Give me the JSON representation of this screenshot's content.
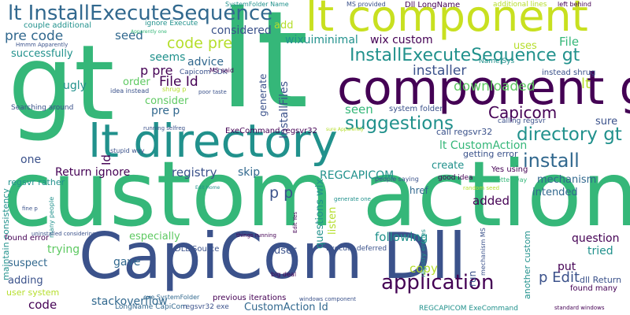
{
  "palette": {
    "dark_purple": "#440154",
    "dark_blue": "#3b528b",
    "teal_blue": "#31688e",
    "teal": "#21918c",
    "green": "#35b779",
    "light_green": "#5ec962",
    "yellow_green": "#b5de2b",
    "yellow": "#c8e020"
  },
  "words": [
    {
      "text": "custom action",
      "color": "#35b779",
      "orientation": "horizontal"
    },
    {
      "text": "gt",
      "color": "#35b779",
      "orientation": "horizontal"
    },
    {
      "text": "lt",
      "color": "#35b779",
      "orientation": "horizontal"
    },
    {
      "text": "CapiCom Dll",
      "color": "#3b528b",
      "orientation": "horizontal"
    },
    {
      "text": "lt component",
      "color": "#c8e020",
      "orientation": "horizontal"
    },
    {
      "text": "component gt",
      "color": "#440154",
      "orientation": "horizontal"
    },
    {
      "text": "lt directory",
      "color": "#21918c",
      "orientation": "horizontal"
    },
    {
      "text": "lt InstallExecuteSequence",
      "color": "#31688e",
      "orientation": "horizontal"
    },
    {
      "text": "InstallExecuteSequence gt",
      "color": "#21918c",
      "orientation": "horizontal"
    },
    {
      "text": "application",
      "color": "#440154",
      "orientation": "horizontal"
    },
    {
      "text": "suggestions",
      "color": "#21918c",
      "orientation": "horizontal"
    },
    {
      "text": "install",
      "color": "#31688e",
      "orientation": "horizontal"
    },
    {
      "text": "directory gt",
      "color": "#21918c",
      "orientation": "horizontal"
    },
    {
      "text": "Capicom",
      "color": "#440154",
      "orientation": "horizontal"
    },
    {
      "text": "code pre",
      "color": "#b5de2b",
      "orientation": "horizontal"
    },
    {
      "text": "pre code",
      "color": "#31688e",
      "orientation": "horizontal"
    },
    {
      "text": "wix custom",
      "color": "#440154",
      "orientation": "horizontal"
    },
    {
      "text": "wixuiminimal",
      "color": "#21918c",
      "orientation": "horizontal"
    },
    {
      "text": "installer",
      "color": "#3b528b",
      "orientation": "horizontal"
    },
    {
      "text": "downloaded",
      "color": "#5ec962",
      "orientation": "horizontal"
    },
    {
      "text": "File Id",
      "color": "#440154",
      "orientation": "horizontal"
    },
    {
      "text": "p pre",
      "color": "#440154",
      "orientation": "horizontal"
    },
    {
      "text": "pre p",
      "color": "#31688e",
      "orientation": "horizontal"
    },
    {
      "text": "p p",
      "color": "#3b528b",
      "orientation": "horizontal"
    },
    {
      "text": "p Edit",
      "color": "#3b528b",
      "orientation": "horizontal"
    },
    {
      "text": "Return ignore",
      "color": "#440154",
      "orientation": "horizontal"
    },
    {
      "text": "registry",
      "color": "#3b528b",
      "orientation": "horizontal"
    },
    {
      "text": "skip",
      "color": "#31688e",
      "orientation": "horizontal"
    },
    {
      "text": "REGCAPICOM",
      "color": "#21918c",
      "orientation": "horizontal"
    },
    {
      "text": "seed",
      "color": "#31688e",
      "orientation": "horizontal"
    },
    {
      "text": "considered",
      "color": "#3b528b",
      "orientation": "horizontal"
    },
    {
      "text": "add",
      "color": "#b5de2b",
      "orientation": "horizontal"
    },
    {
      "text": "seems",
      "color": "#21918c",
      "orientation": "horizontal"
    },
    {
      "text": "advice",
      "color": "#31688e",
      "orientation": "horizontal"
    },
    {
      "text": "order",
      "color": "#5ec962",
      "orientation": "horizontal"
    },
    {
      "text": "consider",
      "color": "#5ec962",
      "orientation": "horizontal"
    },
    {
      "text": "seen",
      "color": "#35b779",
      "orientation": "horizontal"
    },
    {
      "text": "ugly",
      "color": "#21918c",
      "orientation": "horizontal"
    },
    {
      "text": "successfully",
      "color": "#21918c",
      "orientation": "horizontal"
    },
    {
      "text": "one",
      "color": "#3b528b",
      "orientation": "horizontal"
    },
    {
      "text": "copy",
      "color": "#b5de2b",
      "orientation": "horizontal"
    },
    {
      "text": "added",
      "color": "#440154",
      "orientation": "horizontal"
    },
    {
      "text": "following",
      "color": "#21918c",
      "orientation": "horizontal"
    },
    {
      "text": "create",
      "color": "#21918c",
      "orientation": "horizontal"
    },
    {
      "text": "mechanism",
      "color": "#31688e",
      "orientation": "horizontal"
    },
    {
      "text": "question",
      "color": "#440154",
      "orientation": "horizontal"
    },
    {
      "text": "tried",
      "color": "#21918c",
      "orientation": "horizontal"
    },
    {
      "text": "put",
      "color": "#440154",
      "orientation": "horizontal"
    },
    {
      "text": "user",
      "color": "#3b528b",
      "orientation": "horizontal"
    },
    {
      "text": "gave",
      "color": "#31688e",
      "orientation": "horizontal"
    },
    {
      "text": "trying",
      "color": "#5ec962",
      "orientation": "horizontal"
    },
    {
      "text": "especially",
      "color": "#5ec962",
      "orientation": "horizontal"
    },
    {
      "text": "suspect",
      "color": "#31688e",
      "orientation": "horizontal"
    },
    {
      "text": "adding",
      "color": "#3b528b",
      "orientation": "horizontal"
    },
    {
      "text": "code",
      "color": "#440154",
      "orientation": "horizontal"
    },
    {
      "text": "stackoverflow",
      "color": "#31688e",
      "orientation": "horizontal"
    },
    {
      "text": "CustomAction Id",
      "color": "#31688e",
      "orientation": "horizontal"
    },
    {
      "text": "lt CustomAction",
      "color": "#35b779",
      "orientation": "horizontal"
    },
    {
      "text": "call regsvr32",
      "color": "#3b528b",
      "orientation": "horizontal"
    },
    {
      "text": "getting error",
      "color": "#3b528b",
      "orientation": "horizontal"
    },
    {
      "text": "intended",
      "color": "#31688e",
      "orientation": "horizontal"
    },
    {
      "text": "sure",
      "color": "#3b528b",
      "orientation": "horizontal"
    },
    {
      "text": "uses",
      "color": "#b5de2b",
      "orientation": "horizontal"
    },
    {
      "text": "File",
      "color": "#35b779",
      "orientation": "horizontal"
    },
    {
      "text": "href",
      "color": "#31688e",
      "orientation": "horizontal"
    },
    {
      "text": "Id",
      "color": "#440154",
      "orientation": "vertical"
    },
    {
      "text": "generate",
      "color": "#3b528b",
      "orientation": "vertical"
    },
    {
      "text": "InstallFiles",
      "color": "#3b528b",
      "orientation": "vertical"
    },
    {
      "text": "questions wix",
      "color": "#21918c",
      "orientation": "vertical"
    },
    {
      "text": "listen",
      "color": "#b5de2b",
      "orientation": "vertical"
    },
    {
      "text": "run",
      "color": "#3b528b",
      "orientation": "vertical"
    },
    {
      "text": "another custom",
      "color": "#21918c",
      "orientation": "vertical"
    },
    {
      "text": "maintain consistency",
      "color": "#21918c",
      "orientation": "vertical"
    },
    {
      "text": "found error",
      "color": "#440154",
      "orientation": "horizontal"
    },
    {
      "text": "regsvr rather",
      "color": "#21918c",
      "orientation": "horizontal"
    },
    {
      "text": "user system",
      "color": "#b5de2b",
      "orientation": "horizontal"
    },
    {
      "text": "dll Return",
      "color": "#3b528b",
      "orientation": "horizontal"
    },
    {
      "text": "found many",
      "color": "#440154",
      "orientation": "horizontal"
    },
    {
      "text": "couple additional",
      "color": "#21918c",
      "orientation": "horizontal"
    },
    {
      "text": "ExeCommand regsvr32",
      "color": "#440154",
      "orientation": "horizontal"
    },
    {
      "text": "system folder",
      "color": "#3b528b",
      "orientation": "horizontal"
    },
    {
      "text": "calling regsvr",
      "color": "#3b528b",
      "orientation": "horizontal"
    },
    {
      "text": "instead shrug",
      "color": "#3b528b",
      "orientation": "horizontal"
    },
    {
      "text": "Yes using",
      "color": "#440154",
      "orientation": "horizontal"
    },
    {
      "text": "better way",
      "color": "#35b779",
      "orientation": "horizontal"
    },
    {
      "text": "people saying",
      "color": "#3b528b",
      "orientation": "horizontal"
    },
    {
      "text": "good idea",
      "color": "#440154",
      "orientation": "horizontal"
    },
    {
      "text": "DLL Source",
      "color": "#3b528b",
      "orientation": "horizontal"
    },
    {
      "text": "Execute deferred",
      "color": "#3b528b",
      "orientation": "horizontal"
    },
    {
      "text": "previous iterations",
      "color": "#440154",
      "orientation": "horizontal"
    },
    {
      "text": "LongName CapiCom",
      "color": "#31688e",
      "orientation": "horizontal"
    },
    {
      "text": "regsvr32 exe",
      "color": "#3b528b",
      "orientation": "horizontal"
    },
    {
      "text": "exe SystemFolder",
      "color": "#31688e",
      "orientation": "horizontal"
    },
    {
      "text": "big deal",
      "color": "#440154",
      "orientation": "horizontal"
    },
    {
      "text": "REGCAPICOM ExeCommand",
      "color": "#21918c",
      "orientation": "horizontal"
    },
    {
      "text": "Capicom SDK",
      "color": "#3b528b",
      "orientation": "horizontal"
    },
    {
      "text": "MS said",
      "color": "#440154",
      "orientation": "horizontal"
    },
    {
      "text": "idea instead",
      "color": "#3b528b",
      "orientation": "horizontal"
    },
    {
      "text": "shrug p",
      "color": "#b5de2b",
      "orientation": "horizontal"
    },
    {
      "text": "Searching around",
      "color": "#3b528b",
      "orientation": "horizontal"
    },
    {
      "text": "stupid way",
      "color": "#3b528b",
      "orientation": "horizontal"
    },
    {
      "text": "running selfreg",
      "color": "#3b528b",
      "orientation": "horizontal"
    },
    {
      "text": "Name Sys",
      "color": "#21918c",
      "orientation": "horizontal"
    },
    {
      "text": "ignore Execute",
      "color": "#21918c",
      "orientation": "horizontal"
    },
    {
      "text": "SystemFolder Name",
      "color": "#21918c",
      "orientation": "horizontal"
    },
    {
      "text": "MS provided",
      "color": "#3b528b",
      "orientation": "horizontal"
    },
    {
      "text": "Dll LongName",
      "color": "#440154",
      "orientation": "horizontal"
    },
    {
      "text": "additional lines",
      "color": "#b5de2b",
      "orientation": "horizontal"
    },
    {
      "text": "left behind",
      "color": "#440154",
      "orientation": "horizontal"
    },
    {
      "text": "Hmmm Apparently",
      "color": "#3b528b",
      "orientation": "horizontal"
    },
    {
      "text": "Apparently one",
      "color": "#35b779",
      "orientation": "horizontal"
    },
    {
      "text": "poor taste",
      "color": "#3b528b",
      "orientation": "horizontal"
    },
    {
      "text": "Edit Home",
      "color": "#21918c",
      "orientation": "horizontal"
    },
    {
      "text": "many people",
      "color": "#21918c",
      "orientation": "vertical"
    },
    {
      "text": "fine p",
      "color": "#3b528b",
      "orientation": "horizontal"
    },
    {
      "text": "uninstalled considering",
      "color": "#3b528b",
      "orientation": "horizontal"
    },
    {
      "text": "things running",
      "color": "#440154",
      "orientation": "horizontal"
    },
    {
      "text": "generate one",
      "color": "#21918c",
      "orientation": "horizontal"
    },
    {
      "text": "random seed",
      "color": "#b5de2b",
      "orientation": "horizontal"
    },
    {
      "text": "windows component",
      "color": "#3b528b",
      "orientation": "horizontal"
    },
    {
      "text": "standard windows",
      "color": "#440154",
      "orientation": "horizontal"
    },
    {
      "text": "mechanism MS",
      "color": "#3b528b",
      "orientation": "vertical"
    },
    {
      "text": "registry entries",
      "color": "#21918c",
      "orientation": "vertical"
    },
    {
      "text": "Edit Yes",
      "color": "#440154",
      "orientation": "vertical"
    },
    {
      "text": "sure Apparently",
      "color": "#b5de2b",
      "orientation": "horizontal"
    },
    {
      "text": "lt",
      "color": "#b5de2b",
      "orientation": "horizontal"
    }
  ]
}
